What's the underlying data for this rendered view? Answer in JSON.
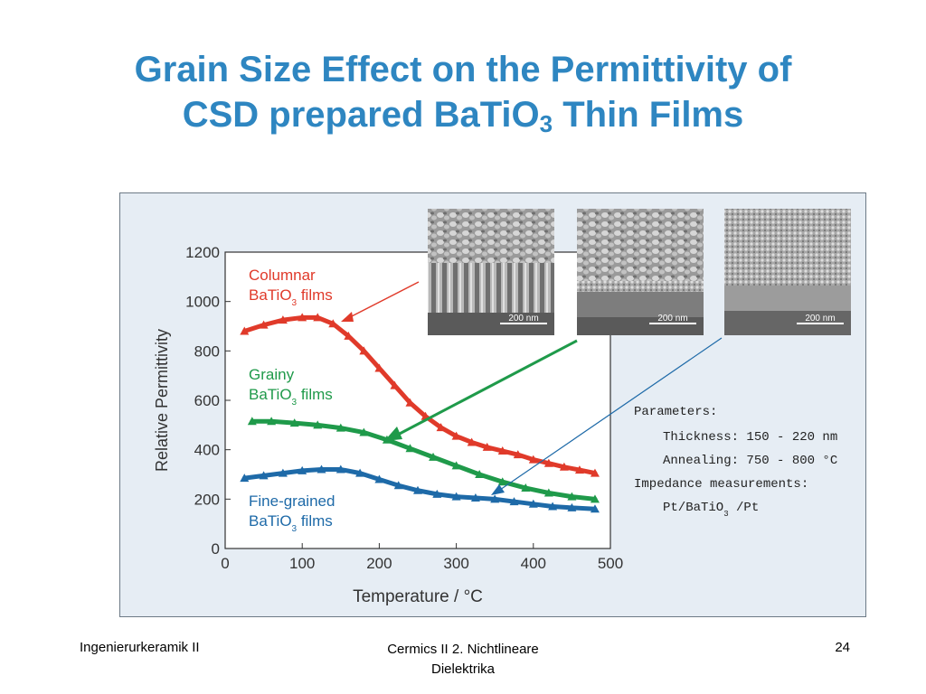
{
  "slide": {
    "title_line1": "Grain Size Effect on the Permittivity of",
    "title_line2_main": "CSD prepared BaTiO",
    "title_line2_sub": "3",
    "title_line2_end": " Thin Films"
  },
  "footer": {
    "left": "Ingenierurkeramik II",
    "center_line1": "Cermics II 2. Nichtlineare",
    "center_line2": "Dielektrika",
    "page_number": "24"
  },
  "micrographs": [
    {
      "scale_label": "200 nm"
    },
    {
      "scale_label": "200 nm"
    },
    {
      "scale_label": "200 nm"
    }
  ],
  "parameters": {
    "title": "Parameters:",
    "thickness": "Thickness: 150 - 220 nm",
    "annealing": "Annealing: 750 - 800 °C",
    "impedance": "Impedance measurements:",
    "electrode_main": "Pt/BaTiO",
    "electrode_sub": "3",
    "electrode_end": " /Pt"
  },
  "colors": {
    "columnar": "#e03a2a",
    "grainy": "#1f9a4a",
    "fine": "#1e6aa8",
    "title": "#2e86c1"
  },
  "chart_data": {
    "type": "line",
    "title": "",
    "xlabel": "Temperature / °C",
    "ylabel": "Relative Permittivity",
    "xlim": [
      0,
      500
    ],
    "ylim": [
      0,
      1200
    ],
    "xticks": [
      0,
      100,
      200,
      300,
      400,
      500
    ],
    "yticks": [
      0,
      200,
      400,
      600,
      800,
      1000,
      1200
    ],
    "grid": false,
    "series": [
      {
        "label_line1": "Columnar",
        "label_line2_main": "BaTiO",
        "label_line2_sub": "3",
        "label_line2_end": " films",
        "x": [
          25,
          50,
          75,
          100,
          120,
          140,
          160,
          180,
          200,
          220,
          240,
          260,
          280,
          300,
          320,
          340,
          360,
          380,
          400,
          420,
          440,
          460,
          480
        ],
        "y": [
          880,
          905,
          925,
          935,
          935,
          910,
          860,
          800,
          730,
          660,
          590,
          535,
          490,
          455,
          430,
          410,
          395,
          380,
          360,
          345,
          330,
          318,
          305
        ]
      },
      {
        "label_line1": "Grainy",
        "label_line2_main": "BaTiO",
        "label_line2_sub": "3",
        "label_line2_end": " films",
        "x": [
          35,
          60,
          90,
          120,
          150,
          180,
          210,
          240,
          270,
          300,
          330,
          360,
          390,
          420,
          450,
          480
        ],
        "y": [
          515,
          515,
          508,
          500,
          488,
          470,
          440,
          405,
          370,
          335,
          300,
          270,
          245,
          225,
          210,
          200
        ]
      },
      {
        "label_line1": "Fine-grained",
        "label_line2_main": "BaTiO",
        "label_line2_sub": "3",
        "label_line2_end": " films",
        "x": [
          25,
          50,
          75,
          100,
          125,
          150,
          175,
          200,
          225,
          250,
          275,
          300,
          325,
          350,
          375,
          400,
          425,
          450,
          480
        ],
        "y": [
          285,
          295,
          305,
          315,
          320,
          320,
          305,
          280,
          255,
          235,
          220,
          210,
          205,
          200,
          190,
          180,
          170,
          165,
          160
        ]
      }
    ]
  }
}
